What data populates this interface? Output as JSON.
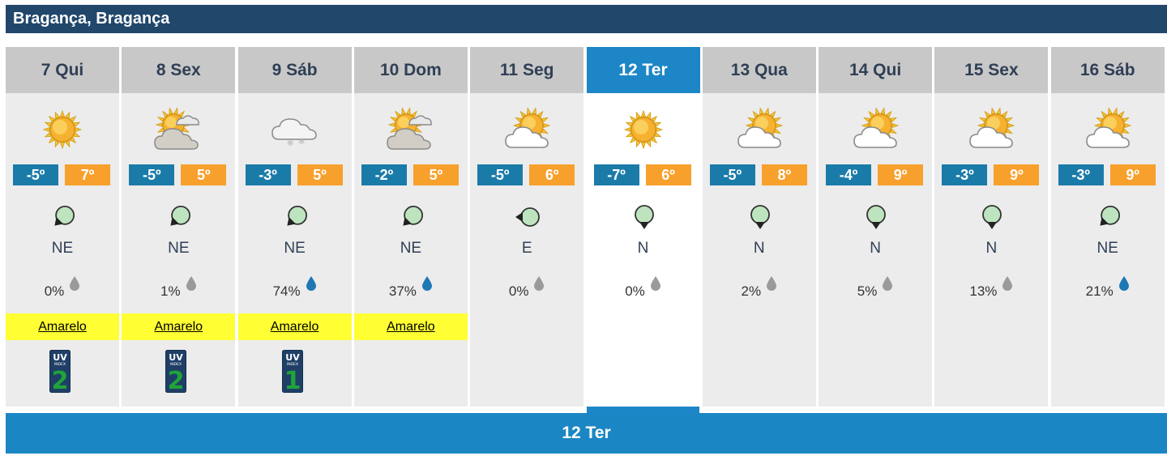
{
  "location": "Bragança, Bragança",
  "selected_day": "12 Ter",
  "days": [
    {
      "label": "7 Qui",
      "icon": "sun-icon",
      "tmin": "-5º",
      "tmax": "7º",
      "wind_icon": "wind-arrow-icon",
      "wind_rot": 45,
      "wind_dir": "NE",
      "precip": "0%",
      "drop_color": "#9a9a9a",
      "warning": "Amarelo",
      "uv": "2",
      "uv_color": "#1fa33a"
    },
    {
      "label": "8 Sex",
      "icon": "sun-behind-cloud-icon",
      "tmin": "-5º",
      "tmax": "5º",
      "wind_icon": "wind-arrow-icon",
      "wind_rot": 45,
      "wind_dir": "NE",
      "precip": "1%",
      "drop_color": "#9a9a9a",
      "warning": "Amarelo",
      "uv": "2",
      "uv_color": "#1fa33a"
    },
    {
      "label": "9 Sáb",
      "icon": "snow-cloud-icon",
      "tmin": "-3º",
      "tmax": "5º",
      "wind_icon": "wind-arrow-icon",
      "wind_rot": 45,
      "wind_dir": "NE",
      "precip": "74%",
      "drop_color": "#1e78b4",
      "warning": "Amarelo",
      "uv": "1",
      "uv_color": "#1fa33a"
    },
    {
      "label": "10 Dom",
      "icon": "sun-behind-cloud-icon",
      "tmin": "-2º",
      "tmax": "5º",
      "wind_icon": "wind-arrow-icon",
      "wind_rot": 45,
      "wind_dir": "NE",
      "precip": "37%",
      "drop_color": "#1e78b4",
      "warning": "Amarelo",
      "uv": null,
      "uv_color": null
    },
    {
      "label": "11 Seg",
      "icon": "partly-cloudy-icon",
      "tmin": "-5º",
      "tmax": "6º",
      "wind_icon": "wind-arrow-icon",
      "wind_rot": 90,
      "wind_dir": "E",
      "precip": "0%",
      "drop_color": "#9a9a9a",
      "warning": null,
      "uv": null,
      "uv_color": null
    },
    {
      "label": "12 Ter",
      "icon": "sun-icon",
      "tmin": "-7º",
      "tmax": "6º",
      "wind_icon": "wind-arrow-icon",
      "wind_rot": 0,
      "wind_dir": "N",
      "precip": "0%",
      "drop_color": "#9a9a9a",
      "warning": null,
      "uv": null,
      "uv_color": null
    },
    {
      "label": "13 Qua",
      "icon": "partly-cloudy-icon",
      "tmin": "-5º",
      "tmax": "8º",
      "wind_icon": "wind-arrow-icon",
      "wind_rot": 0,
      "wind_dir": "N",
      "precip": "2%",
      "drop_color": "#9a9a9a",
      "warning": null,
      "uv": null,
      "uv_color": null
    },
    {
      "label": "14 Qui",
      "icon": "partly-cloudy-icon",
      "tmin": "-4º",
      "tmax": "9º",
      "wind_icon": "wind-arrow-icon",
      "wind_rot": 0,
      "wind_dir": "N",
      "precip": "5%",
      "drop_color": "#9a9a9a",
      "warning": null,
      "uv": null,
      "uv_color": null
    },
    {
      "label": "15 Sex",
      "icon": "partly-cloudy-icon",
      "tmin": "-3º",
      "tmax": "9º",
      "wind_icon": "wind-arrow-icon",
      "wind_rot": 0,
      "wind_dir": "N",
      "precip": "13%",
      "drop_color": "#9a9a9a",
      "warning": null,
      "uv": null,
      "uv_color": null
    },
    {
      "label": "16 Sáb",
      "icon": "partly-cloudy-icon",
      "tmin": "-3º",
      "tmax": "9º",
      "wind_icon": "wind-arrow-icon",
      "wind_rot": 45,
      "wind_dir": "NE",
      "precip": "21%",
      "drop_color": "#1e78b4",
      "warning": null,
      "uv": null,
      "uv_color": null
    }
  ],
  "colors": {
    "title_bg": "#21476b",
    "header_bg": "#c8c8c8",
    "selected": "#1d86c6",
    "tmin_bg": "#1b7ba8",
    "tmax_bg": "#f8a02c",
    "warning_bg": "#ffff33",
    "column_bg": "#ececec"
  }
}
